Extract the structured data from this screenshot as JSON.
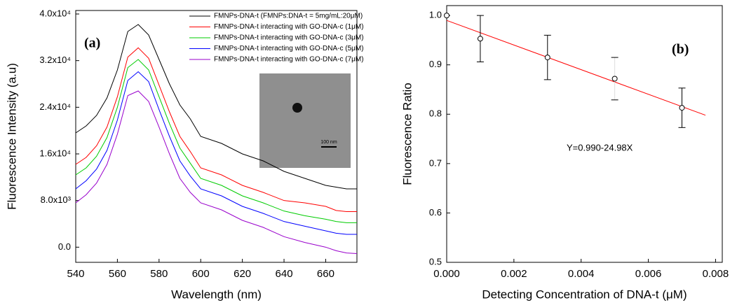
{
  "chart_data": [
    {
      "type": "line",
      "annotation": "(a)",
      "x_label": "Wavelength (nm)",
      "y_label": "Fluorescence Intensity (a.u)",
      "x": [
        540,
        545,
        550,
        555,
        560,
        565,
        570,
        575,
        580,
        585,
        590,
        595,
        600,
        610,
        620,
        625,
        630,
        640,
        650,
        660,
        665,
        670,
        675
      ],
      "series": [
        {
          "name": "FMNPs-DNA-t (FMNPs:DNA-t = 5mg/mL:20μM)",
          "color": "#000000",
          "values": [
            19600,
            20800,
            22600,
            25600,
            30400,
            37000,
            38200,
            36400,
            32200,
            28000,
            24400,
            22000,
            19000,
            17800,
            16000,
            15400,
            14800,
            13000,
            11800,
            10600,
            10300,
            10000,
            10000
          ]
        },
        {
          "name": "FMNPs-DNA-t interacting with GO-DNA-c (1μM)",
          "color": "#ff0000",
          "values": [
            14200,
            15400,
            17400,
            20600,
            25800,
            32600,
            34200,
            32400,
            27800,
            23200,
            19000,
            16400,
            13600,
            12400,
            10600,
            10000,
            9400,
            8000,
            7600,
            7000,
            6300,
            6100,
            6100
          ]
        },
        {
          "name": "FMNPs-DNA-t interacting with GO-DNA-c (3μM)",
          "color": "#00cc00",
          "values": [
            12400,
            13600,
            15600,
            18800,
            24000,
            30800,
            32200,
            30400,
            25800,
            21200,
            17000,
            14400,
            11800,
            10600,
            8800,
            8200,
            7600,
            6200,
            5400,
            4800,
            4400,
            4200,
            4200
          ]
        },
        {
          "name": "FMNPs-DNA-t interacting with GO-DNA-c (5μM)",
          "color": "#0000ff",
          "values": [
            10000,
            11400,
            13400,
            16600,
            21800,
            28600,
            30100,
            28400,
            23600,
            19000,
            14800,
            12200,
            10000,
            8800,
            7000,
            6400,
            5800,
            4400,
            3600,
            2800,
            2400,
            2200,
            2200
          ]
        },
        {
          "name": "FMNPs-DNA-t interacting with GO-DNA-c (7μM)",
          "color": "#9900cc",
          "values": [
            7600,
            9000,
            11000,
            14200,
            19400,
            26000,
            26800,
            25000,
            20600,
            16000,
            11800,
            9400,
            7600,
            6400,
            4600,
            4000,
            3400,
            1800,
            800,
            0,
            -600,
            -1000,
            -1100
          ]
        }
      ],
      "xlim": [
        540,
        675
      ],
      "xticks": [
        540,
        560,
        580,
        600,
        620,
        640,
        660
      ],
      "ylim": [
        -2600,
        40600
      ],
      "yticks": [
        {
          "value": 0,
          "label": "0.0"
        },
        {
          "value": 8000,
          "label": "8.0x10³"
        },
        {
          "value": 16000,
          "label": "1.6x10⁴"
        },
        {
          "value": 24000,
          "label": "2.4x10⁴"
        },
        {
          "value": 32000,
          "label": "3.2x10⁴"
        },
        {
          "value": 40000,
          "label": "4.0x10⁴"
        }
      ],
      "inset_scale_label": "100 nm",
      "legend": "upper right"
    },
    {
      "type": "scatter",
      "annotation": "(b)",
      "equation": "Y=0.990-24.98X",
      "x_label": "Detecting Concentration of DNA-t (μM)",
      "y_label": "Fluorescence Ratio",
      "x": [
        0,
        0.001,
        0.003,
        0.005,
        0.007
      ],
      "values": [
        1.0,
        0.953,
        0.915,
        0.872,
        0.813
      ],
      "errors": [
        null,
        0.047,
        0.045,
        0.043,
        0.04
      ],
      "fit_line": {
        "x": [
          0,
          0.0077
        ],
        "y": [
          0.99,
          0.798
        ],
        "color": "#ff0000"
      },
      "xlim": [
        0,
        0.0082
      ],
      "xticks": [
        {
          "value": 0,
          "label": "0.000"
        },
        {
          "value": 0.002,
          "label": "0.002"
        },
        {
          "value": 0.004,
          "label": "0.004"
        },
        {
          "value": 0.006,
          "label": "0.006"
        },
        {
          "value": 0.008,
          "label": "0.008"
        }
      ],
      "ylim": [
        0.5,
        1.02
      ],
      "yticks": [
        0.5,
        0.6,
        0.7,
        0.8,
        0.9,
        {
          "value": 1,
          "label": "1.0"
        }
      ]
    }
  ]
}
